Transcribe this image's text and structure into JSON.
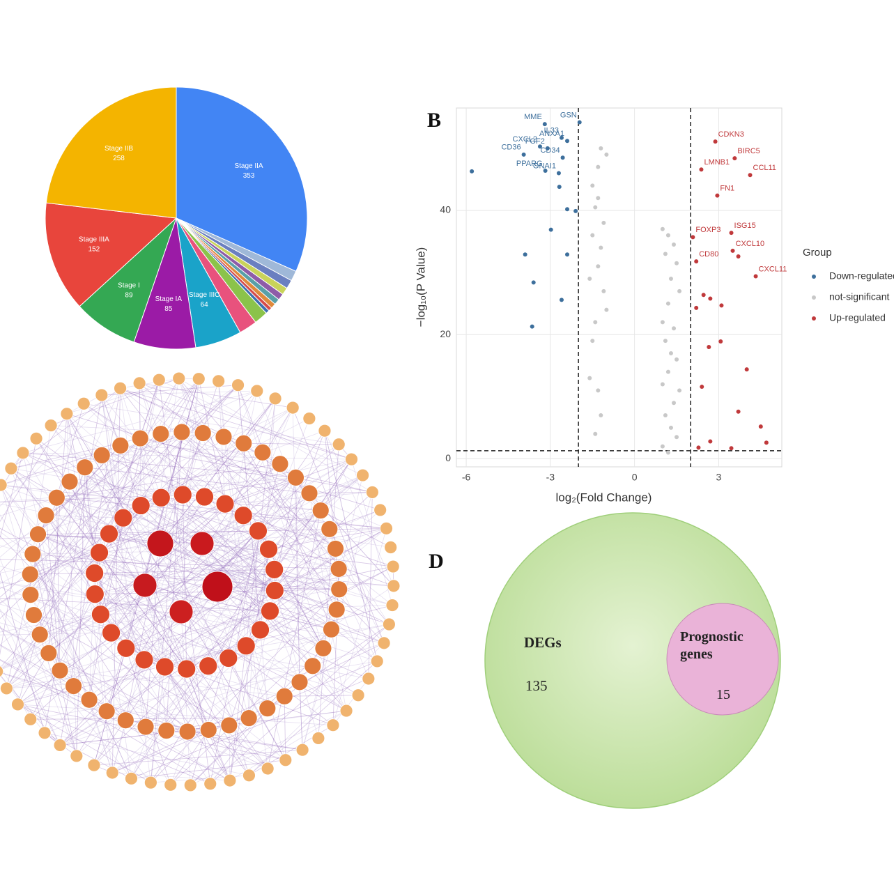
{
  "chart_data": [
    {
      "type": "pie",
      "categories": [
        "Stage IIA",
        null,
        null,
        null,
        null,
        null,
        null,
        null,
        null,
        null,
        null,
        "Stage IIIC",
        "Stage IA",
        "Stage I",
        "Stage IIIA",
        "Stage IIB"
      ],
      "values": [
        353,
        14,
        12,
        10,
        9,
        8,
        7,
        5,
        5,
        19,
        25,
        64,
        85,
        89,
        152,
        258
      ],
      "colors": [
        "#4285f4",
        "#9fb8d8",
        "#6a7fc0",
        "#c9d35a",
        "#8e5ca8",
        "#5aa0a8",
        "#e08a3c",
        "#d64b4b",
        "#3f6fb0",
        "#8bc34a",
        "#e8527d",
        "#1aa3c9",
        "#9b1ba6",
        "#34a853",
        "#e8453c",
        "#f4b400"
      ]
    },
    {
      "type": "scatter",
      "panel_label": "B",
      "x_label": "log₂(Fold Change)",
      "y_label": "−log₁₀(P Value)",
      "xlim": [
        -6.35,
        5.25
      ],
      "ylim": [
        -1.3,
        56.5
      ],
      "xticks": [
        -6,
        -3,
        0,
        3
      ],
      "yticks": [
        0,
        20,
        40
      ],
      "grid": true,
      "ref_x": [
        -2,
        2
      ],
      "ref_y": 1.3,
      "legend_title": "Group",
      "legend": "right",
      "series": [
        {
          "name": "Down-regulated",
          "color": "#3d6f9c",
          "x": [
            -3.2,
            -1.96,
            -2.6,
            -2.4,
            -3.37,
            -3.1,
            -3.95,
            -2.56,
            -3.18,
            -2.7,
            -5.8,
            -2.68,
            -2.4,
            -2.1,
            -2.98,
            -3.9,
            -2.4,
            -3.6,
            -2.6,
            -3.65
          ],
          "values": [
            53.9,
            54.2,
            51.7,
            51.2,
            50.3,
            50,
            49,
            48.5,
            46.4,
            46,
            46.3,
            43.8,
            40.2,
            39.9,
            36.9,
            32.9,
            32.9,
            28.4,
            25.6,
            21.3
          ],
          "labels": [
            "MME",
            "GSN",
            "IL33",
            "ANXA1",
            "CXCL2",
            "FGF2",
            "CD36",
            "CD34",
            "PPARG",
            "GNAI1",
            null,
            null,
            null,
            null,
            null,
            null,
            null,
            null,
            null,
            null
          ]
        },
        {
          "name": "not-significant",
          "color": "#c8c8c8",
          "x": [
            -1.2,
            -1.0,
            -1.3,
            -1.5,
            -1.3,
            -1.4,
            -1.1,
            -1.5,
            -1.2,
            -1.3,
            -1.6,
            -1.1,
            -1.0,
            -1.4,
            -1.5,
            -1.6,
            -1.3,
            -1.2,
            -1.4,
            1.0,
            1.2,
            1.4,
            1.1,
            1.5,
            1.3,
            1.6,
            1.2,
            1.0,
            1.4,
            1.1,
            1.3,
            1.5,
            1.2,
            1.0,
            1.6,
            1.4,
            1.1,
            1.3,
            1.5,
            1.0,
            1.2
          ],
          "values": [
            50,
            49,
            47,
            44,
            42,
            40.5,
            38,
            36,
            34,
            31,
            29,
            27,
            24,
            22,
            19,
            13,
            11,
            7,
            4,
            37,
            36,
            34.5,
            33,
            31.5,
            29,
            27,
            25,
            22,
            21,
            19,
            17,
            16,
            14,
            12,
            11,
            9,
            7,
            5,
            3.5,
            2,
            1
          ]
        },
        {
          "name": "Up-regulated",
          "color": "#c0393b",
          "x": [
            2.88,
            3.57,
            4.12,
            2.38,
            2.95,
            3.45,
            2.08,
            3.5,
            2.2,
            3.7,
            4.32,
            2.46,
            2.7,
            3.1,
            2.2,
            3.07,
            2.65,
            2.4,
            4.0,
            3.7,
            4.5,
            4.7,
            2.7,
            3.45,
            2.28
          ],
          "values": [
            51.1,
            48.4,
            45.7,
            46.6,
            42.4,
            36.4,
            35.7,
            33.5,
            31.8,
            32.6,
            29.4,
            26.4,
            25.8,
            24.7,
            24.3,
            18.9,
            18,
            11.6,
            14.4,
            7.6,
            5.2,
            2.6,
            2.8,
            1.7,
            1.8
          ],
          "labels": [
            "CDKN3",
            "BIRC5",
            "CCL11",
            "LMNB1",
            "FN1",
            "ISG15",
            "FOXP3",
            "CXCL10",
            "CD80",
            null,
            "CXCL11",
            null,
            null,
            null,
            null,
            null,
            null,
            null,
            null,
            null,
            null,
            null,
            null,
            null,
            null
          ]
        }
      ]
    },
    {
      "type": "venn",
      "panel_label": "D",
      "sets": [
        {
          "name": "DEGs",
          "value": 135,
          "color": "#cfe7b4"
        },
        {
          "name": "Prognostic genes",
          "value": 15,
          "color": "#eab3d8"
        }
      ]
    }
  ]
}
